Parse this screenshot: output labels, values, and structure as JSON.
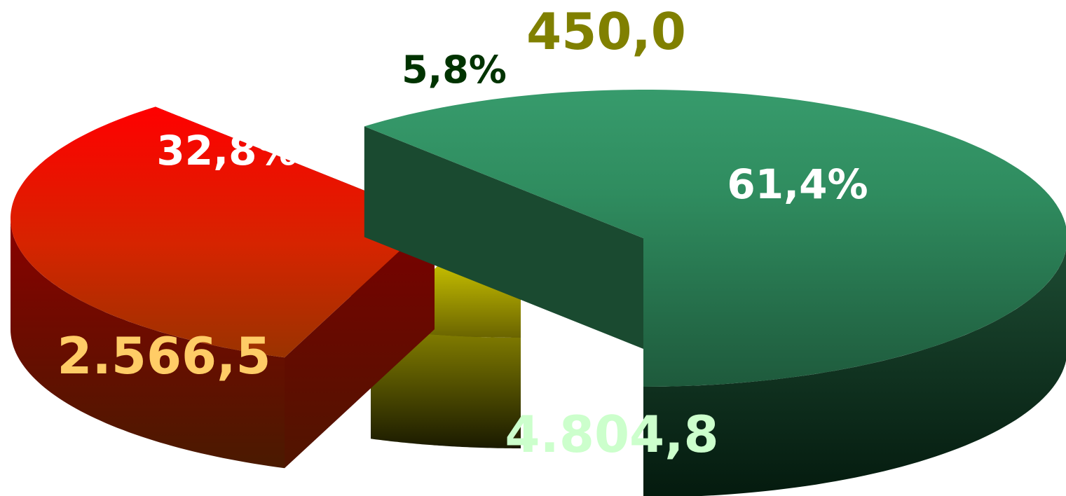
{
  "chart_data": {
    "type": "pie",
    "style": "3d-exploded",
    "slices": [
      {
        "value": 4804.8,
        "value_label": "4.804,8",
        "percent_label": "61,4%",
        "color": "#33996a",
        "value_label_color": "#ccffcc",
        "percent_label_color": "#ffffff"
      },
      {
        "value": 2566.5,
        "value_label": "2.566,5",
        "percent_label": "32,8%",
        "color": "#ff0000",
        "value_label_color": "#ffcc66",
        "percent_label_color": "#ffffff"
      },
      {
        "value": 450.0,
        "value_label": "450,0",
        "percent_label": "5,8%",
        "color": "#ffff00",
        "value_label_color": "#808000",
        "percent_label_color": "#003300"
      }
    ]
  }
}
